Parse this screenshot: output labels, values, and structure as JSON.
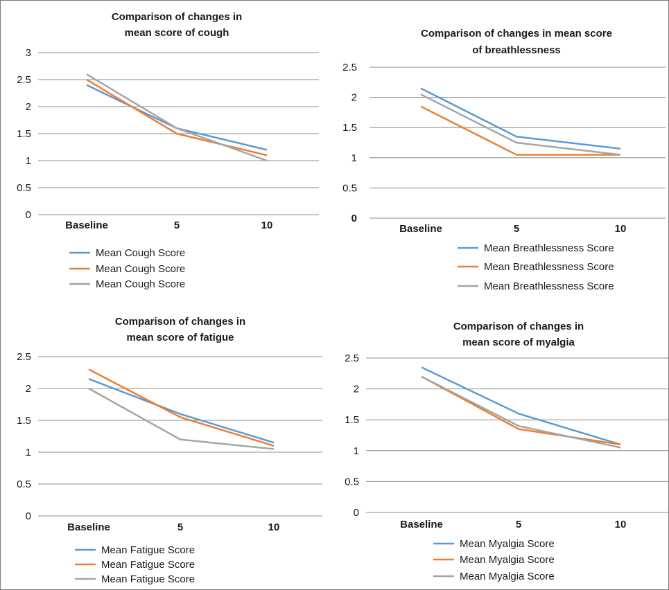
{
  "chart_data": [
    {
      "type": "line",
      "title": [
        "Comparison of changes in",
        "mean score of cough"
      ],
      "categories": [
        "Baseline",
        "5",
        "10"
      ],
      "ylim": [
        0,
        3
      ],
      "yticks": [
        "0",
        "0.5",
        "1",
        "1.5",
        "2",
        "2.5",
        "3"
      ],
      "ytick_bold_zero": false,
      "grid": true,
      "legend": "bottom",
      "series": [
        {
          "name": "Mean Cough Score",
          "color": "#5b9bd5",
          "values": [
            2.4,
            1.6,
            1.2
          ]
        },
        {
          "name": "Mean Cough Score",
          "color": "#ed7d31",
          "values": [
            2.5,
            1.5,
            1.1
          ]
        },
        {
          "name": "Mean Cough Score",
          "color": "#a5a5a5",
          "values": [
            2.6,
            1.6,
            1.0
          ]
        }
      ]
    },
    {
      "type": "line",
      "title": [
        "Comparison of changes in mean score",
        "of breathlessness"
      ],
      "categories": [
        "Baseline",
        "5",
        "10"
      ],
      "ylim": [
        0,
        2.5
      ],
      "yticks": [
        "0",
        "0.5",
        "1",
        "1.5",
        "2",
        "2.5"
      ],
      "ytick_bold_zero": true,
      "grid": true,
      "legend": "bottom",
      "series": [
        {
          "name": "Mean Breathlessness Score",
          "color": "#5b9bd5",
          "values": [
            2.15,
            1.35,
            1.15
          ]
        },
        {
          "name": "Mean Breathlessness Score",
          "color": "#ed7d31",
          "values": [
            1.85,
            1.05,
            1.05
          ]
        },
        {
          "name": "Mean Breathlessness Score",
          "color": "#a5a5a5",
          "values": [
            2.05,
            1.25,
            1.05
          ]
        }
      ]
    },
    {
      "type": "line",
      "title": [
        "Comparison of changes in",
        "mean score of fatigue"
      ],
      "categories": [
        "Baseline",
        "5",
        "10"
      ],
      "ylim": [
        0,
        2.5
      ],
      "yticks": [
        "0",
        "0.5",
        "1",
        "1.5",
        "2",
        "2.5"
      ],
      "ytick_bold_zero": false,
      "grid": true,
      "legend": "bottom",
      "series": [
        {
          "name": "Mean Fatigue Score",
          "color": "#5b9bd5",
          "values": [
            2.15,
            1.6,
            1.15
          ]
        },
        {
          "name": "Mean Fatigue Score",
          "color": "#ed7d31",
          "values": [
            2.3,
            1.55,
            1.1
          ]
        },
        {
          "name": "Mean Fatigue Score",
          "color": "#a5a5a5",
          "values": [
            2.0,
            1.2,
            1.05
          ]
        }
      ]
    },
    {
      "type": "line",
      "title": [
        "Comparison of changes in",
        "mean score of myalgia"
      ],
      "categories": [
        "Baseline",
        "5",
        "10"
      ],
      "ylim": [
        0,
        2.5
      ],
      "yticks": [
        "0",
        "0.5",
        "1",
        "1.5",
        "2",
        "2.5"
      ],
      "ytick_bold_zero": false,
      "grid": true,
      "legend": "bottom",
      "series": [
        {
          "name": "Mean Myalgia Score",
          "color": "#5b9bd5",
          "values": [
            2.35,
            1.6,
            1.1
          ]
        },
        {
          "name": "Mean Myalgia Score",
          "color": "#ed7d31",
          "values": [
            2.2,
            1.35,
            1.1
          ]
        },
        {
          "name": "Mean Myalgia Score",
          "color": "#a5a5a5",
          "values": [
            2.2,
            1.4,
            1.05
          ]
        }
      ]
    }
  ]
}
